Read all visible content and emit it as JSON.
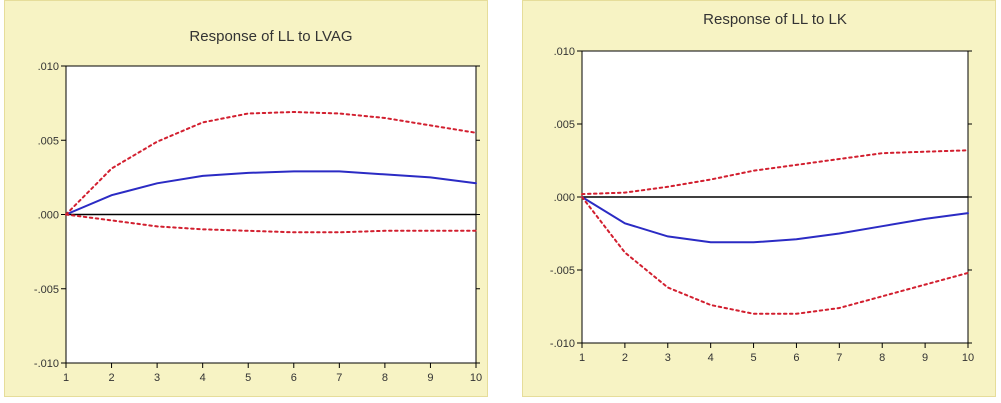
{
  "colors": {
    "panel_bg": "#f7f3c4",
    "plot_bg": "#ffffff",
    "response": "#2b2bc4",
    "band": "#d21f2f",
    "zero": "#000000"
  },
  "chart_data": [
    {
      "type": "line",
      "title": "Response of LL to LVAG",
      "x": [
        1,
        2,
        3,
        4,
        5,
        6,
        7,
        8,
        9,
        10
      ],
      "xticks": [
        "1",
        "2",
        "3",
        "4",
        "5",
        "6",
        "7",
        "8",
        "9",
        "10"
      ],
      "ylim": [
        -0.01,
        0.01
      ],
      "yticks": [
        0.01,
        0.005,
        0.0,
        -0.005,
        -0.01
      ],
      "yticklabels": [
        ".010",
        ".005",
        ".000",
        "-.005",
        "-.010"
      ],
      "series": [
        {
          "role": "response",
          "values": [
            0.0,
            0.0013,
            0.0021,
            0.0026,
            0.0028,
            0.0029,
            0.0029,
            0.0027,
            0.0025,
            0.0021
          ]
        },
        {
          "role": "upper",
          "values": [
            0.0,
            0.0031,
            0.0049,
            0.0062,
            0.0068,
            0.0069,
            0.0068,
            0.0065,
            0.006,
            0.0055
          ]
        },
        {
          "role": "lower",
          "values": [
            0.0,
            -0.0004,
            -0.0008,
            -0.001,
            -0.0011,
            -0.0012,
            -0.0012,
            -0.0011,
            -0.0011,
            -0.0011
          ]
        }
      ],
      "grid": false
    },
    {
      "type": "line",
      "title": "Response of LL to LK",
      "x": [
        1,
        2,
        3,
        4,
        5,
        6,
        7,
        8,
        9,
        10
      ],
      "xticks": [
        "1",
        "2",
        "3",
        "4",
        "5",
        "6",
        "7",
        "8",
        "9",
        "10"
      ],
      "ylim": [
        -0.01,
        0.01
      ],
      "yticks": [
        0.01,
        0.005,
        0.0,
        -0.005,
        -0.01
      ],
      "yticklabels": [
        ".010",
        ".005",
        ".000",
        "-.005",
        "-.010"
      ],
      "series": [
        {
          "role": "response",
          "values": [
            0.0,
            -0.0018,
            -0.0027,
            -0.0031,
            -0.0031,
            -0.0029,
            -0.0025,
            -0.002,
            -0.0015,
            -0.0011
          ]
        },
        {
          "role": "upper",
          "values": [
            0.0002,
            0.0003,
            0.0007,
            0.0012,
            0.0018,
            0.0022,
            0.0026,
            0.003,
            0.0031,
            0.0032
          ]
        },
        {
          "role": "lower",
          "values": [
            0.0,
            -0.0038,
            -0.0062,
            -0.0074,
            -0.008,
            -0.008,
            -0.0076,
            -0.0068,
            -0.006,
            -0.0052
          ]
        }
      ],
      "grid": false
    }
  ]
}
